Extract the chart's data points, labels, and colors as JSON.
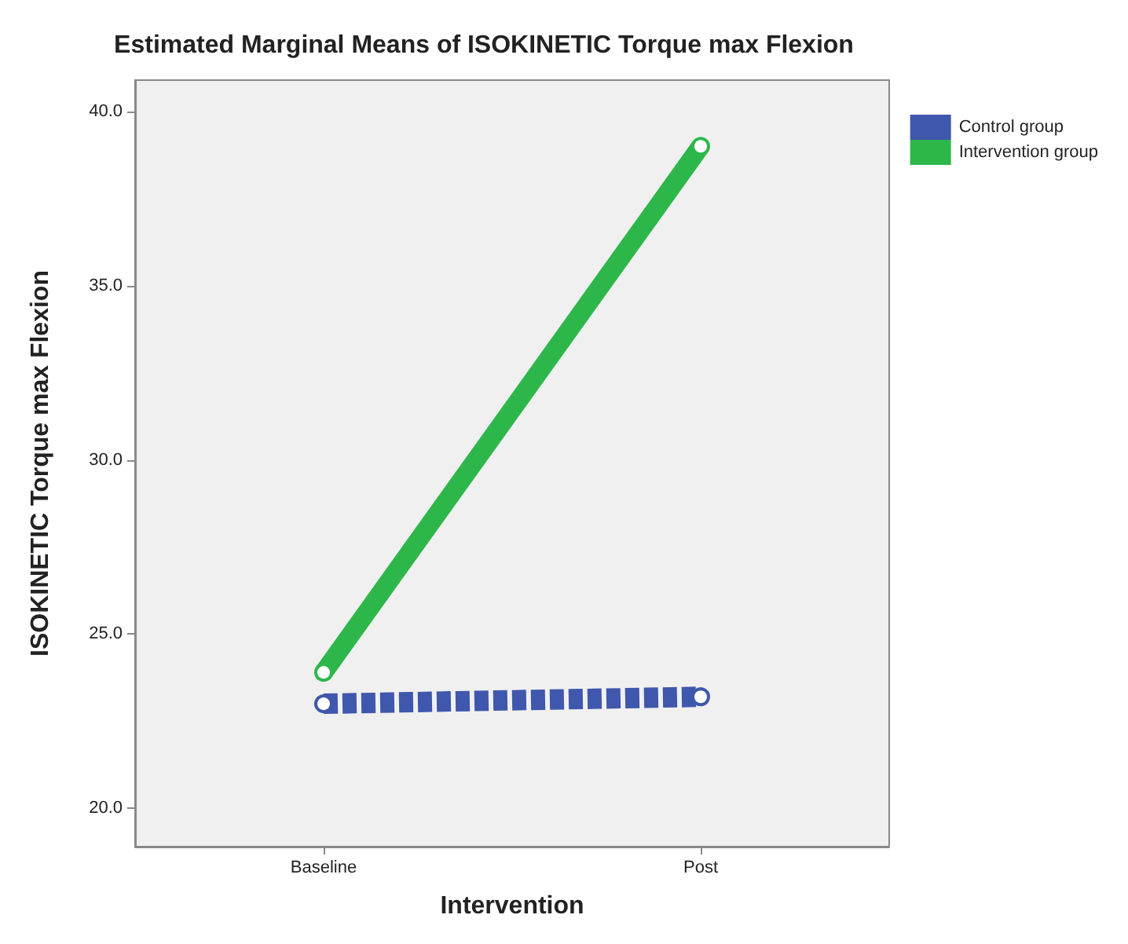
{
  "chart_data": {
    "type": "line",
    "title": "Estimated Marginal Means of ISOKINETIC Torque max Flexion",
    "xlabel": "Intervention",
    "ylabel": "ISOKINETIC Torque max Flexion",
    "categories": [
      "Baseline",
      "Post"
    ],
    "series": [
      {
        "name": "Control group",
        "color": "#3f57ac",
        "values": [
          23.0,
          23.2
        ],
        "line_style": "dashed"
      },
      {
        "name": "Intervention group",
        "color": "#2db74a",
        "values": [
          23.9,
          39.0
        ],
        "line_style": "solid"
      }
    ],
    "ylim": [
      18.9,
      40.9
    ],
    "yticks": [
      {
        "value": 20,
        "label": "20.0"
      },
      {
        "value": 25,
        "label": "25.0"
      },
      {
        "value": 30,
        "label": "30.0"
      },
      {
        "value": 35,
        "label": "35.0"
      },
      {
        "value": 40,
        "label": "40.0"
      }
    ],
    "marker": "circle",
    "grid": false,
    "legend": "top right"
  }
}
